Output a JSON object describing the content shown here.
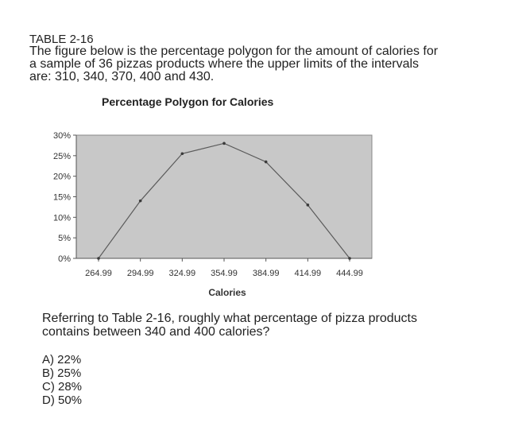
{
  "document": {
    "table_label": "TABLE 2-16",
    "intro_lines": [
      "The figure below is the percentage polygon for the amount of calories for",
      "a sample of 36 pizzas products where the upper limits of the intervals",
      "are: 310, 340, 370, 400 and 430."
    ],
    "question_lines": [
      "Referring to Table 2-16, roughly what percentage of pizza products",
      "contains between 340 and 400 calories?"
    ],
    "options": [
      "A) 22%",
      "B) 25%",
      "C) 28%",
      "D) 50%"
    ]
  },
  "chart_data": {
    "type": "line",
    "title": "Percentage Polygon for Calories",
    "xlabel": "Calories",
    "ylabel": "",
    "categories": [
      "264.99",
      "294.99",
      "324.99",
      "354.99",
      "384.99",
      "414.99",
      "444.99"
    ],
    "series": [
      {
        "values": [
          0,
          14,
          25.5,
          28,
          23.5,
          13,
          0
        ]
      }
    ],
    "yticks": [
      "0%",
      "5%",
      "10%",
      "15%",
      "20%",
      "25%",
      "30%"
    ],
    "ylim": [
      0,
      30
    ],
    "grid": false,
    "legend": "none",
    "colors": {
      "plot_bg": "#c8c8c8",
      "line": "#5a5a5a",
      "marker": "#3a3a3a"
    }
  }
}
